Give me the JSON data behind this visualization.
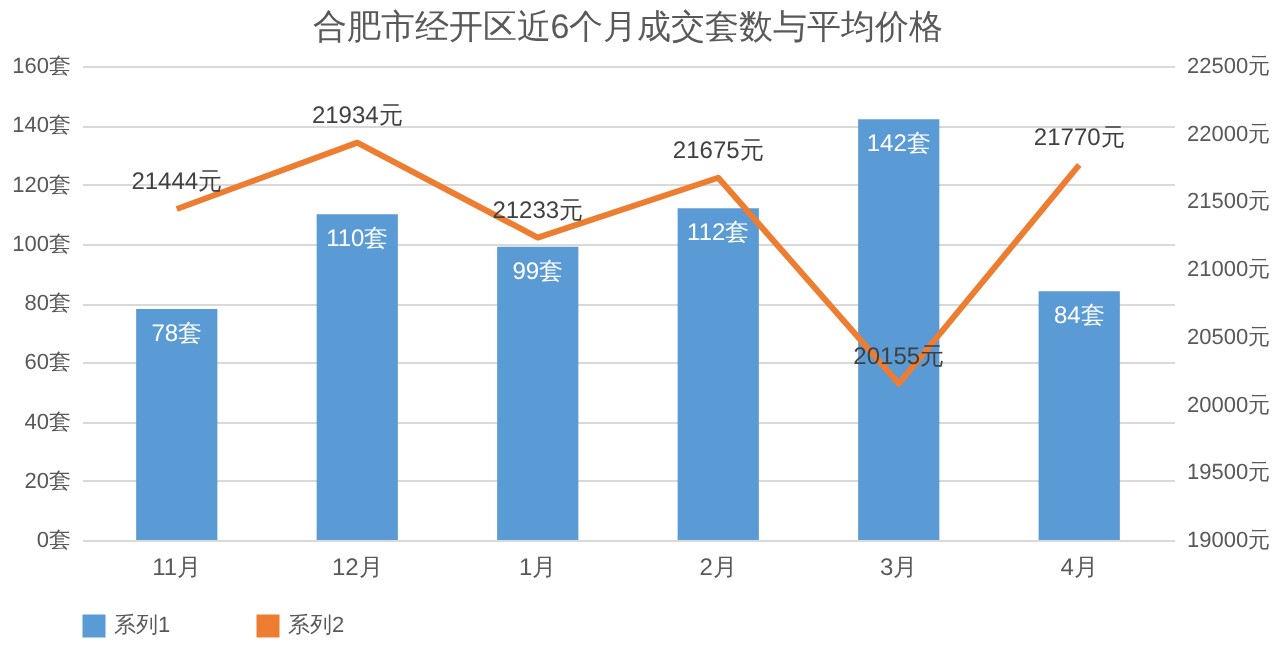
{
  "chart_data": {
    "type": "bar",
    "title": "合肥市经开区近6个月成交套数与平均价格",
    "categories": [
      "11月",
      "12月",
      "1月",
      "2月",
      "3月",
      "4月"
    ],
    "series": [
      {
        "name": "系列1",
        "color": "#5b9bd5",
        "values": [
          78,
          110,
          99,
          112,
          142,
          84
        ],
        "value_labels": [
          "78套",
          "110套",
          "99套",
          "112套",
          "142套",
          "84套"
        ]
      },
      {
        "name": "系列2",
        "type": "line",
        "axis": "y2",
        "color": "#ed7d31",
        "values": [
          21444,
          21934,
          21233,
          21675,
          20155,
          21770
        ],
        "value_labels": [
          "21444元",
          "21934元",
          "21233元",
          "21675元",
          "20155元",
          "21770元"
        ]
      }
    ],
    "ylim": [
      0,
      160
    ],
    "yticks": [
      {
        "value": 0,
        "label": "0套"
      },
      {
        "value": 20,
        "label": "20套"
      },
      {
        "value": 40,
        "label": "40套"
      },
      {
        "value": 60,
        "label": "60套"
      },
      {
        "value": 80,
        "label": "80套"
      },
      {
        "value": 100,
        "label": "100套"
      },
      {
        "value": 120,
        "label": "120套"
      },
      {
        "value": 140,
        "label": "140套"
      },
      {
        "value": 160,
        "label": "160套"
      }
    ],
    "y2lim": [
      19000,
      22500
    ],
    "y2ticks": [
      {
        "value": 19000,
        "label": "19000元"
      },
      {
        "value": 19500,
        "label": "19500元"
      },
      {
        "value": 20000,
        "label": "20000元"
      },
      {
        "value": 20500,
        "label": "20500元"
      },
      {
        "value": 21000,
        "label": "21000元"
      },
      {
        "value": 21500,
        "label": "21500元"
      },
      {
        "value": 22000,
        "label": "22000元"
      },
      {
        "value": 22500,
        "label": "22500元"
      }
    ],
    "grid": "y",
    "legend": "bottom",
    "marker": "none",
    "line_style": "solid"
  }
}
